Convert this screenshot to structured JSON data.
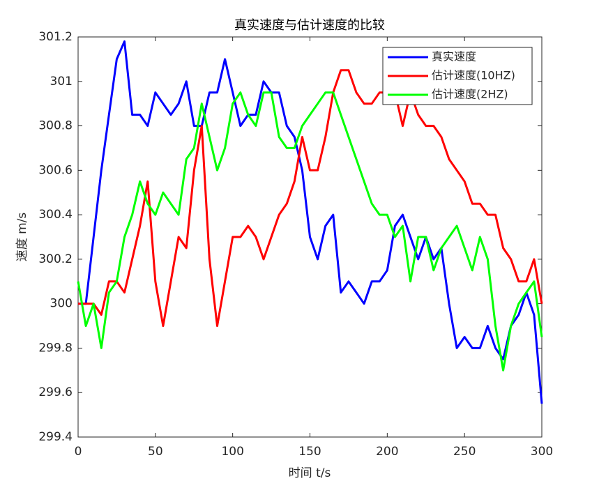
{
  "chart_data": {
    "type": "line",
    "title": "真实速度与估计速度的比较",
    "x_label": "时间 t/s",
    "y_label": "速度 m/s",
    "x": [
      0,
      5,
      10,
      15,
      20,
      25,
      30,
      35,
      40,
      45,
      50,
      55,
      60,
      65,
      70,
      75,
      80,
      85,
      90,
      95,
      100,
      105,
      110,
      115,
      120,
      125,
      130,
      135,
      140,
      145,
      150,
      155,
      160,
      165,
      170,
      175,
      180,
      185,
      190,
      195,
      200,
      205,
      210,
      215,
      220,
      225,
      230,
      235,
      240,
      245,
      250,
      255,
      260,
      265,
      270,
      275,
      280,
      285,
      290,
      295,
      300
    ],
    "series": [
      {
        "name": "真实速度",
        "color": "#0000ff",
        "values": [
          300.0,
          300.0,
          300.3,
          300.6,
          300.85,
          301.1,
          301.18,
          300.85,
          300.85,
          300.8,
          300.95,
          300.9,
          300.85,
          300.9,
          301.0,
          300.8,
          300.8,
          300.95,
          300.95,
          301.1,
          300.95,
          300.8,
          300.85,
          300.85,
          301.0,
          300.95,
          300.95,
          300.8,
          300.75,
          300.6,
          300.3,
          300.2,
          300.35,
          300.4,
          300.05,
          300.1,
          300.05,
          300.0,
          300.1,
          300.1,
          300.15,
          300.35,
          300.4,
          300.3,
          300.2,
          300.3,
          300.2,
          300.25,
          300.0,
          299.8,
          299.85,
          299.8,
          299.8,
          299.9,
          299.8,
          299.75,
          299.9,
          299.95,
          300.05,
          299.95,
          299.55
        ]
      },
      {
        "name": "估计速度(10HZ)",
        "color": "#ff0000",
        "values": [
          300.0,
          300.0,
          300.0,
          299.95,
          300.1,
          300.1,
          300.05,
          300.2,
          300.35,
          300.55,
          300.1,
          299.9,
          300.1,
          300.3,
          300.25,
          300.6,
          300.8,
          300.2,
          299.9,
          300.1,
          300.3,
          300.3,
          300.35,
          300.3,
          300.2,
          300.3,
          300.4,
          300.45,
          300.55,
          300.75,
          300.6,
          300.6,
          300.75,
          300.95,
          301.05,
          301.05,
          300.95,
          300.9,
          300.9,
          300.95,
          300.95,
          300.95,
          300.8,
          300.95,
          300.85,
          300.8,
          300.8,
          300.75,
          300.65,
          300.6,
          300.55,
          300.45,
          300.45,
          300.4,
          300.4,
          300.25,
          300.2,
          300.1,
          300.1,
          300.2,
          300.0
        ]
      },
      {
        "name": "估计速度(2HZ)",
        "color": "#00ff00",
        "values": [
          300.1,
          299.9,
          300.0,
          299.8,
          300.05,
          300.1,
          300.3,
          300.4,
          300.55,
          300.45,
          300.4,
          300.5,
          300.45,
          300.4,
          300.65,
          300.7,
          300.9,
          300.75,
          300.6,
          300.7,
          300.9,
          300.95,
          300.85,
          300.8,
          300.95,
          300.95,
          300.75,
          300.7,
          300.7,
          300.8,
          300.85,
          300.9,
          300.95,
          300.95,
          300.85,
          300.75,
          300.65,
          300.55,
          300.45,
          300.4,
          300.4,
          300.3,
          300.35,
          300.1,
          300.3,
          300.3,
          300.15,
          300.25,
          300.3,
          300.35,
          300.25,
          300.15,
          300.3,
          300.2,
          299.9,
          299.7,
          299.9,
          300.0,
          300.05,
          300.1,
          299.85
        ]
      }
    ],
    "xlim": [
      0,
      300
    ],
    "xticks": [
      0,
      50,
      100,
      150,
      200,
      250,
      300
    ],
    "ylim": [
      299.4,
      301.2
    ],
    "yticks": [
      299.4,
      299.6,
      299.8,
      300,
      300.2,
      300.4,
      300.6,
      300.8,
      301,
      301.2
    ],
    "legend": "northeast"
  }
}
